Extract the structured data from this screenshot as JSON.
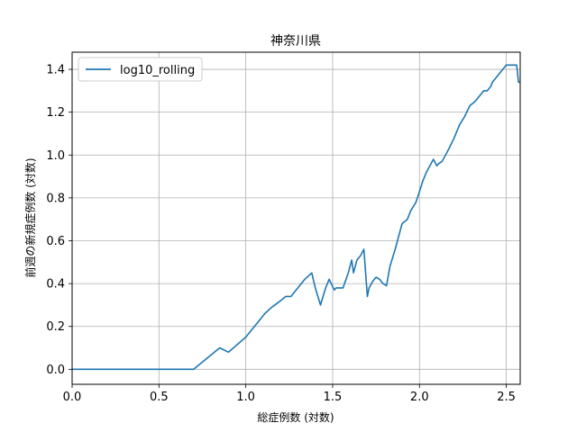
{
  "chart_data": {
    "type": "line",
    "title": "神奈川県",
    "xlabel": "総症例数 (対数)",
    "ylabel": "前週の新規症例数 (対数)",
    "xlim": [
      0.0,
      2.58
    ],
    "ylim": [
      -0.07,
      1.48
    ],
    "xticks": [
      0.0,
      0.5,
      1.0,
      1.5,
      2.0,
      2.5
    ],
    "xtick_labels": [
      "0.0",
      "0.5",
      "1.0",
      "1.5",
      "2.0",
      "2.5"
    ],
    "yticks": [
      0.0,
      0.2,
      0.4,
      0.6,
      0.8,
      1.0,
      1.2,
      1.4
    ],
    "ytick_labels": [
      "0.0",
      "0.2",
      "0.4",
      "0.6",
      "0.8",
      "1.0",
      "1.2",
      "1.4"
    ],
    "grid": true,
    "legend_position": "upper-left",
    "series": [
      {
        "name": "log10_rolling",
        "color": "#1f77b4",
        "x": [
          0.0,
          0.3,
          0.48,
          0.6,
          0.7,
          0.85,
          0.9,
          1.0,
          1.08,
          1.11,
          1.15,
          1.2,
          1.23,
          1.26,
          1.3,
          1.34,
          1.38,
          1.4,
          1.43,
          1.46,
          1.48,
          1.51,
          1.52,
          1.53,
          1.56,
          1.59,
          1.61,
          1.62,
          1.64,
          1.66,
          1.68,
          1.7,
          1.71,
          1.73,
          1.75,
          1.77,
          1.79,
          1.81,
          1.83,
          1.86,
          1.9,
          1.93,
          1.95,
          1.98,
          2.0,
          2.02,
          2.04,
          2.06,
          2.08,
          2.1,
          2.11,
          2.13,
          2.15,
          2.17,
          2.2,
          2.23,
          2.26,
          2.29,
          2.32,
          2.34,
          2.37,
          2.39,
          2.41,
          2.42,
          2.44,
          2.46,
          2.48,
          2.5,
          2.52,
          2.54,
          2.56,
          2.57,
          2.58
        ],
        "y": [
          0.0,
          0.0,
          0.0,
          0.0,
          0.0,
          0.1,
          0.08,
          0.15,
          0.23,
          0.26,
          0.29,
          0.32,
          0.34,
          0.34,
          0.38,
          0.42,
          0.45,
          0.38,
          0.3,
          0.38,
          0.42,
          0.37,
          0.38,
          0.38,
          0.38,
          0.45,
          0.51,
          0.45,
          0.51,
          0.53,
          0.56,
          0.34,
          0.38,
          0.41,
          0.43,
          0.42,
          0.4,
          0.39,
          0.48,
          0.56,
          0.68,
          0.7,
          0.74,
          0.78,
          0.83,
          0.88,
          0.92,
          0.95,
          0.98,
          0.95,
          0.96,
          0.97,
          1.0,
          1.03,
          1.08,
          1.14,
          1.18,
          1.23,
          1.25,
          1.27,
          1.3,
          1.3,
          1.32,
          1.34,
          1.36,
          1.38,
          1.4,
          1.42,
          1.42,
          1.42,
          1.42,
          1.34,
          1.34
        ]
      }
    ]
  }
}
